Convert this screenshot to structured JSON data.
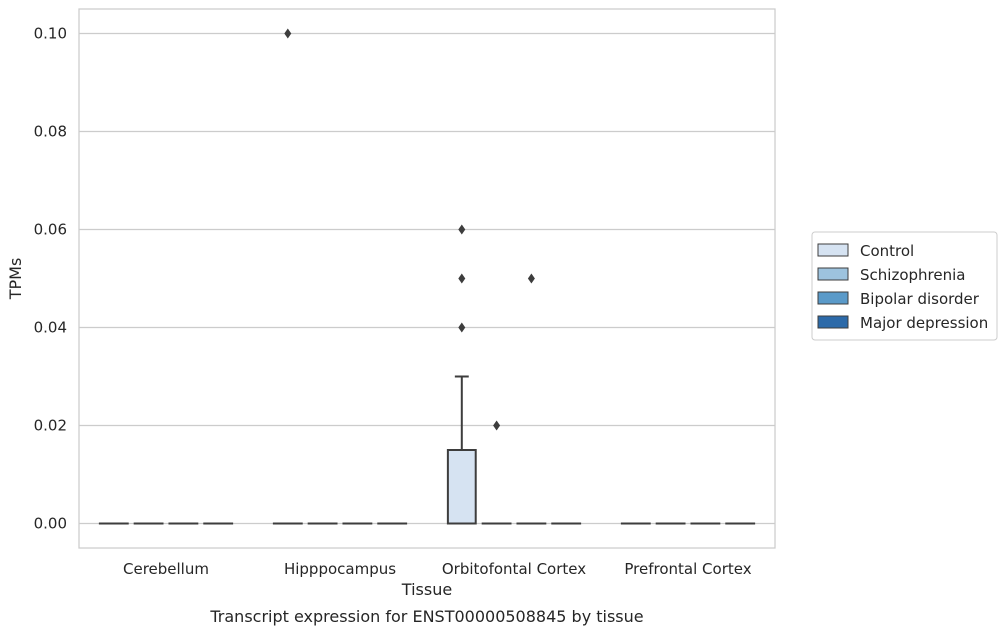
{
  "chart_data": {
    "type": "box",
    "title": "",
    "caption": "Transcript expression for ENST00000508845 by tissue",
    "xlabel": "Tissue",
    "ylabel": "TPMs",
    "ylim": [
      -0.005,
      0.105
    ],
    "yticks": [
      0.0,
      0.02,
      0.04,
      0.06,
      0.08,
      0.1
    ],
    "ytick_labels": [
      "0.00",
      "0.02",
      "0.04",
      "0.06",
      "0.08",
      "0.10"
    ],
    "grid": true,
    "legend_position": "right",
    "categories": [
      "Cerebellum",
      "Hipppocampus",
      "Orbitofontal Cortex",
      "Prefrontal Cortex"
    ],
    "series": [
      {
        "name": "Control",
        "color": "#d6e3f2",
        "boxes": [
          {
            "category": "Cerebellum",
            "min": 0,
            "q1": 0,
            "median": 0,
            "q3": 0,
            "max": 0,
            "outliers": []
          },
          {
            "category": "Hipppocampus",
            "min": 0,
            "q1": 0,
            "median": 0,
            "q3": 0,
            "max": 0,
            "outliers": [
              0.1
            ]
          },
          {
            "category": "Orbitofontal Cortex",
            "min": 0,
            "q1": 0,
            "median": 0,
            "q3": 0.015,
            "max": 0.03,
            "outliers": [
              0.04,
              0.05,
              0.06
            ]
          },
          {
            "category": "Prefrontal Cortex",
            "min": 0,
            "q1": 0,
            "median": 0,
            "q3": 0,
            "max": 0,
            "outliers": []
          }
        ]
      },
      {
        "name": "Schizophrenia",
        "color": "#9dc3de",
        "boxes": [
          {
            "category": "Cerebellum",
            "min": 0,
            "q1": 0,
            "median": 0,
            "q3": 0,
            "max": 0,
            "outliers": []
          },
          {
            "category": "Hipppocampus",
            "min": 0,
            "q1": 0,
            "median": 0,
            "q3": 0,
            "max": 0,
            "outliers": []
          },
          {
            "category": "Orbitofontal Cortex",
            "min": 0,
            "q1": 0,
            "median": 0,
            "q3": 0,
            "max": 0,
            "outliers": [
              0.02
            ]
          },
          {
            "category": "Prefrontal Cortex",
            "min": 0,
            "q1": 0,
            "median": 0,
            "q3": 0,
            "max": 0,
            "outliers": []
          }
        ]
      },
      {
        "name": "Bipolar disorder",
        "color": "#5a9ac9",
        "boxes": [
          {
            "category": "Cerebellum",
            "min": 0,
            "q1": 0,
            "median": 0,
            "q3": 0,
            "max": 0,
            "outliers": []
          },
          {
            "category": "Hipppocampus",
            "min": 0,
            "q1": 0,
            "median": 0,
            "q3": 0,
            "max": 0,
            "outliers": []
          },
          {
            "category": "Orbitofontal Cortex",
            "min": 0,
            "q1": 0,
            "median": 0,
            "q3": 0,
            "max": 0,
            "outliers": [
              0.05
            ]
          },
          {
            "category": "Prefrontal Cortex",
            "min": 0,
            "q1": 0,
            "median": 0,
            "q3": 0,
            "max": 0,
            "outliers": []
          }
        ]
      },
      {
        "name": "Major depression",
        "color": "#2c6aa9",
        "boxes": [
          {
            "category": "Cerebellum",
            "min": 0,
            "q1": 0,
            "median": 0,
            "q3": 0,
            "max": 0,
            "outliers": []
          },
          {
            "category": "Hipppocampus",
            "min": 0,
            "q1": 0,
            "median": 0,
            "q3": 0,
            "max": 0,
            "outliers": []
          },
          {
            "category": "Orbitofontal Cortex",
            "min": 0,
            "q1": 0,
            "median": 0,
            "q3": 0,
            "max": 0,
            "outliers": []
          },
          {
            "category": "Prefrontal Cortex",
            "min": 0,
            "q1": 0,
            "median": 0,
            "q3": 0,
            "max": 0,
            "outliers": []
          }
        ]
      }
    ]
  }
}
